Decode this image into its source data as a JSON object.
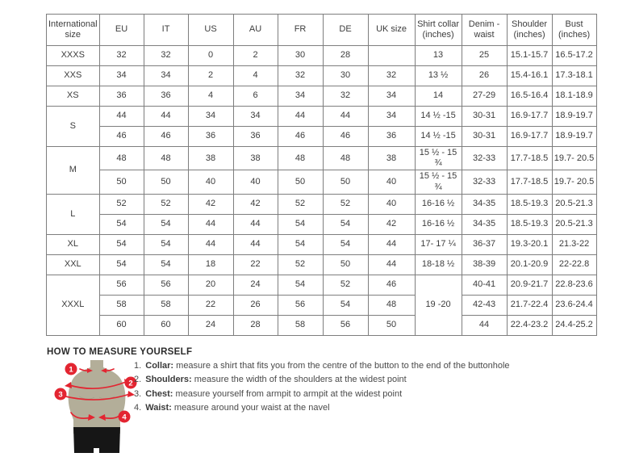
{
  "table": {
    "headers": [
      "International size",
      "EU",
      "IT",
      "US",
      "AU",
      "FR",
      "DE",
      "UK size",
      "Shirt collar (inches)",
      "Denim - waist",
      "Shoulder (inches)",
      "Bust (inches)"
    ],
    "rows": [
      [
        "XXXS",
        "32",
        "32",
        "0",
        "2",
        "30",
        "28",
        "",
        "13",
        "25",
        "15.1-15.7",
        "16.5-17.2"
      ],
      [
        "XXS",
        "34",
        "34",
        "2",
        "4",
        "32",
        "30",
        "32",
        "13 ½",
        "26",
        "15.4-16.1",
        "17.3-18.1"
      ],
      [
        "XS",
        "36",
        "36",
        "4",
        "6",
        "34",
        "32",
        "34",
        "14",
        "27-29",
        "16.5-16.4",
        "18.1-18.9"
      ],
      [
        {
          "t": "S",
          "rs": 2
        },
        "44",
        "44",
        "34",
        "34",
        "44",
        "44",
        "34",
        "14 ½ -15",
        "30-31",
        "16.9-17.7",
        "18.9-19.7"
      ],
      [
        null,
        "46",
        "46",
        "36",
        "36",
        "46",
        "46",
        "36",
        "14 ½ -15",
        "30-31",
        "16.9-17.7",
        "18.9-19.7"
      ],
      [
        {
          "t": "M",
          "rs": 2
        },
        "48",
        "48",
        "38",
        "38",
        "48",
        "48",
        "38",
        "15 ½ - 15 ¾",
        "32-33",
        "17.7-18.5",
        "19.7- 20.5"
      ],
      [
        null,
        "50",
        "50",
        "40",
        "40",
        "50",
        "50",
        "40",
        "15 ½ - 15 ¾",
        "32-33",
        "17.7-18.5",
        "19.7- 20.5"
      ],
      [
        {
          "t": "L",
          "rs": 2
        },
        "52",
        "52",
        "42",
        "42",
        "52",
        "52",
        "40",
        "16-16 ½",
        "34-35",
        "18.5-19.3",
        "20.5-21.3"
      ],
      [
        null,
        "54",
        "54",
        "44",
        "44",
        "54",
        "54",
        "42",
        "16-16 ½",
        "34-35",
        "18.5-19.3",
        "20.5-21.3"
      ],
      [
        "XL",
        "54",
        "54",
        "44",
        "44",
        "54",
        "54",
        "44",
        "17- 17 ¼",
        "36-37",
        "19.3-20.1",
        "21.3-22"
      ],
      [
        "XXL",
        "54",
        "54",
        "18",
        "22",
        "52",
        "50",
        "44",
        "18-18 ½",
        "38-39",
        "20.1-20.9",
        "22-22.8"
      ],
      [
        {
          "t": "XXXL",
          "rs": 3
        },
        "56",
        "56",
        "20",
        "24",
        "54",
        "52",
        "46",
        {
          "t": "19 -20",
          "rs": 3
        },
        "40-41",
        "20.9-21.7",
        "22.8-23.6"
      ],
      [
        null,
        "58",
        "58",
        "22",
        "26",
        "56",
        "54",
        "48",
        null,
        "42-43",
        "21.7-22.4",
        "23.6-24.4"
      ],
      [
        null,
        "60",
        "60",
        "24",
        "28",
        "58",
        "56",
        "50",
        null,
        "44",
        "22.4-23.2",
        "24.4-25.2"
      ]
    ]
  },
  "measure": {
    "title": "HOW TO MEASURE YOURSELF",
    "steps": [
      {
        "num": "1.",
        "label": "Collar:",
        "text": "measure a shirt that fits you from the centre of the button to the end of the buttonhole"
      },
      {
        "num": "2.",
        "label": "Shoulders:",
        "text": "measure the width of the shoulders at the widest point"
      },
      {
        "num": "3.",
        "label": "Chest:",
        "text": "measure yourself from armpit to armpit at the widest point"
      },
      {
        "num": "4.",
        "label": "Waist:",
        "text": "measure around your waist at the navel"
      }
    ],
    "figure_markers": [
      "1",
      "2",
      "3",
      "4"
    ]
  },
  "colors": {
    "accent_red": "#e32531",
    "mannequin_body": "#b3ae99",
    "mannequin_shorts": "#161616",
    "table_border": "#7e7e7e",
    "text": "#3c3c3c"
  }
}
